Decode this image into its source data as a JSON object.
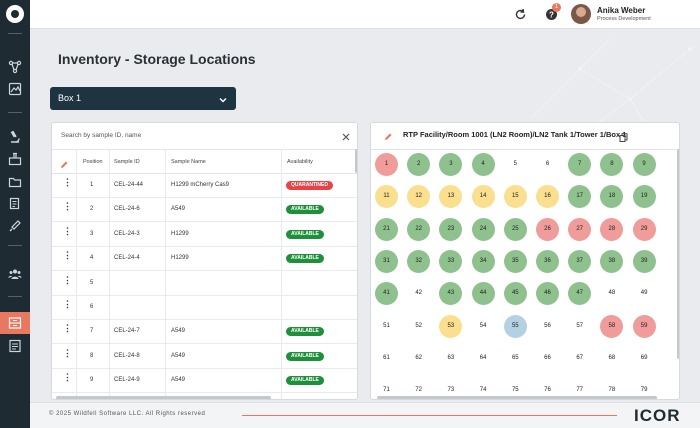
{
  "sidebar": {
    "items": [
      "logo-icon",
      "flask-network-icon",
      "photo-icon",
      "microscope-icon",
      "lab-icon",
      "folder-icon",
      "documents-icon",
      "pipette-icon",
      "users-icon",
      "storage-icon",
      "report-icon"
    ]
  },
  "header": {
    "notification_count": "1",
    "user_name": "Anika Weber",
    "user_role": "Process Development"
  },
  "page": {
    "title": "Inventory - Storage Locations"
  },
  "box_select": {
    "value": "Box 1"
  },
  "left_panel": {
    "search_placeholder": "Search by sample ID, name",
    "columns": [
      "Position",
      "Sample ID",
      "Sample Name",
      "Availability"
    ],
    "rows": [
      {
        "position": "1",
        "sample_id": "CEL-24-44",
        "sample_name": "H1299 mCherry Cas9",
        "availability": "QUARANTINED"
      },
      {
        "position": "2",
        "sample_id": "CEL-24-6",
        "sample_name": "A549",
        "availability": "AVAILABLE"
      },
      {
        "position": "3",
        "sample_id": "CEL-24-3",
        "sample_name": "H1299",
        "availability": "AVAILABLE"
      },
      {
        "position": "4",
        "sample_id": "CEL-24-4",
        "sample_name": "H1299",
        "availability": "AVAILABLE"
      },
      {
        "position": "5",
        "sample_id": "",
        "sample_name": "",
        "availability": ""
      },
      {
        "position": "6",
        "sample_id": "",
        "sample_name": "",
        "availability": ""
      },
      {
        "position": "7",
        "sample_id": "CEL-24-7",
        "sample_name": "A549",
        "availability": "AVAILABLE"
      },
      {
        "position": "8",
        "sample_id": "CEL-24-8",
        "sample_name": "A549",
        "availability": "AVAILABLE"
      },
      {
        "position": "9",
        "sample_id": "CEL-24-9",
        "sample_name": "A549",
        "availability": "AVAILABLE"
      }
    ]
  },
  "right_panel": {
    "path": "RTP Facility/Room 1001 (LN2 Room)/LN2 Tank 1/Tower 1/Box 1",
    "positions": [
      {
        "n": "1",
        "s": "quar"
      },
      {
        "n": "2",
        "s": "occ"
      },
      {
        "n": "3",
        "s": "occ"
      },
      {
        "n": "4",
        "s": "occ"
      },
      {
        "n": "5",
        "s": "empty"
      },
      {
        "n": "6",
        "s": "empty"
      },
      {
        "n": "7",
        "s": "occ"
      },
      {
        "n": "8",
        "s": "occ"
      },
      {
        "n": "9",
        "s": "occ"
      },
      {
        "n": "11",
        "s": "warn"
      },
      {
        "n": "12",
        "s": "warn"
      },
      {
        "n": "13",
        "s": "warn"
      },
      {
        "n": "14",
        "s": "warn"
      },
      {
        "n": "15",
        "s": "warn"
      },
      {
        "n": "16",
        "s": "warn"
      },
      {
        "n": "17",
        "s": "occ"
      },
      {
        "n": "18",
        "s": "occ"
      },
      {
        "n": "19",
        "s": "occ"
      },
      {
        "n": "21",
        "s": "occ"
      },
      {
        "n": "22",
        "s": "occ"
      },
      {
        "n": "23",
        "s": "occ"
      },
      {
        "n": "24",
        "s": "occ"
      },
      {
        "n": "25",
        "s": "occ"
      },
      {
        "n": "26",
        "s": "quar"
      },
      {
        "n": "27",
        "s": "quar"
      },
      {
        "n": "28",
        "s": "quar"
      },
      {
        "n": "29",
        "s": "quar"
      },
      {
        "n": "31",
        "s": "occ"
      },
      {
        "n": "32",
        "s": "occ"
      },
      {
        "n": "33",
        "s": "occ"
      },
      {
        "n": "34",
        "s": "occ"
      },
      {
        "n": "35",
        "s": "occ"
      },
      {
        "n": "36",
        "s": "occ"
      },
      {
        "n": "37",
        "s": "occ"
      },
      {
        "n": "38",
        "s": "occ"
      },
      {
        "n": "39",
        "s": "occ"
      },
      {
        "n": "41",
        "s": "occ"
      },
      {
        "n": "42",
        "s": "empty"
      },
      {
        "n": "43",
        "s": "occ"
      },
      {
        "n": "44",
        "s": "occ"
      },
      {
        "n": "45",
        "s": "occ"
      },
      {
        "n": "46",
        "s": "occ"
      },
      {
        "n": "47",
        "s": "occ"
      },
      {
        "n": "48",
        "s": "empty"
      },
      {
        "n": "49",
        "s": "empty"
      },
      {
        "n": "51",
        "s": "empty"
      },
      {
        "n": "52",
        "s": "empty"
      },
      {
        "n": "53",
        "s": "warn"
      },
      {
        "n": "54",
        "s": "empty"
      },
      {
        "n": "55",
        "s": "blue"
      },
      {
        "n": "56",
        "s": "empty"
      },
      {
        "n": "57",
        "s": "empty"
      },
      {
        "n": "58",
        "s": "quar"
      },
      {
        "n": "59",
        "s": "quar"
      },
      {
        "n": "61",
        "s": "empty"
      },
      {
        "n": "62",
        "s": "empty"
      },
      {
        "n": "63",
        "s": "empty"
      },
      {
        "n": "64",
        "s": "empty"
      },
      {
        "n": "65",
        "s": "empty"
      },
      {
        "n": "66",
        "s": "empty"
      },
      {
        "n": "67",
        "s": "empty"
      },
      {
        "n": "68",
        "s": "empty"
      },
      {
        "n": "69",
        "s": "empty"
      },
      {
        "n": "71",
        "s": "empty"
      },
      {
        "n": "72",
        "s": "empty"
      },
      {
        "n": "73",
        "s": "empty"
      },
      {
        "n": "74",
        "s": "empty"
      },
      {
        "n": "75",
        "s": "empty"
      },
      {
        "n": "76",
        "s": "empty"
      },
      {
        "n": "77",
        "s": "empty"
      },
      {
        "n": "78",
        "s": "empty"
      },
      {
        "n": "79",
        "s": "empty"
      }
    ]
  },
  "footer": {
    "copyright": "© 2025 Wildfell Software LLC. All Rights reserved",
    "logo": "ICOR"
  },
  "colors": {
    "sidebar": "#1e2b33",
    "accent": "#e8785f",
    "available": "#1e8f3a",
    "quarantined": "#e64545",
    "occupied": "#8fc18f",
    "reserved": "#f9df8e"
  }
}
